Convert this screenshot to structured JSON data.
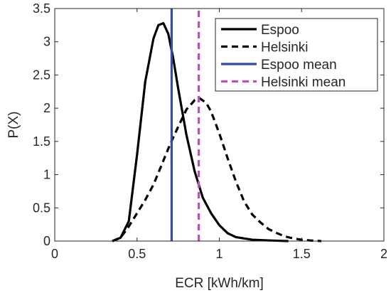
{
  "chart_data": {
    "type": "line",
    "title": "",
    "xlabel": "ECR [kWh/km]",
    "ylabel": "P(X)",
    "xlim": [
      0,
      2
    ],
    "ylim": [
      0,
      3.5
    ],
    "xticks": [
      0,
      0.5,
      1,
      1.5,
      2
    ],
    "yticks": [
      0,
      0.5,
      1,
      1.5,
      2,
      2.5,
      3,
      3.5
    ],
    "xtick_labels": [
      "0",
      "0.5",
      "1",
      "1.5",
      "2"
    ],
    "ytick_labels": [
      "0",
      "0.5",
      "1",
      "1.5",
      "2",
      "2.5",
      "3",
      "3.5"
    ],
    "grid": false,
    "legend": "top-right",
    "series": [
      {
        "name": "Espoo",
        "style": "solid",
        "color": "#000000",
        "x": [
          0.35,
          0.4,
          0.45,
          0.5,
          0.55,
          0.6,
          0.63,
          0.66,
          0.69,
          0.72,
          0.75,
          0.8,
          0.85,
          0.9,
          0.95,
          1.0,
          1.05,
          1.1,
          1.2,
          1.3,
          1.42
        ],
        "y": [
          0.0,
          0.05,
          0.3,
          1.3,
          2.4,
          3.05,
          3.25,
          3.28,
          3.12,
          2.75,
          2.3,
          1.6,
          1.05,
          0.65,
          0.42,
          0.24,
          0.12,
          0.06,
          0.02,
          0.01,
          0.0
        ]
      },
      {
        "name": "Helsinki",
        "style": "dashed",
        "color": "#000000",
        "x": [
          0.35,
          0.4,
          0.45,
          0.5,
          0.55,
          0.6,
          0.65,
          0.7,
          0.75,
          0.8,
          0.85,
          0.88,
          0.92,
          0.95,
          1.0,
          1.05,
          1.1,
          1.15,
          1.2,
          1.25,
          1.3,
          1.35,
          1.4,
          1.45,
          1.5,
          1.55,
          1.62
        ],
        "y": [
          0.0,
          0.05,
          0.22,
          0.42,
          0.62,
          0.85,
          1.15,
          1.45,
          1.72,
          1.98,
          2.12,
          2.15,
          2.08,
          1.95,
          1.62,
          1.25,
          0.9,
          0.6,
          0.4,
          0.28,
          0.18,
          0.12,
          0.07,
          0.04,
          0.02,
          0.01,
          0.0
        ]
      },
      {
        "name": "Espoo mean",
        "style": "solid-vertical",
        "color": "#2e4fa5",
        "x": [
          0.71,
          0.71
        ],
        "y": [
          0,
          3.5
        ]
      },
      {
        "name": "Helsinki mean",
        "style": "dashed-vertical",
        "color": "#bf4fb2",
        "x": [
          0.875,
          0.875
        ],
        "y": [
          0,
          3.5
        ]
      }
    ]
  }
}
